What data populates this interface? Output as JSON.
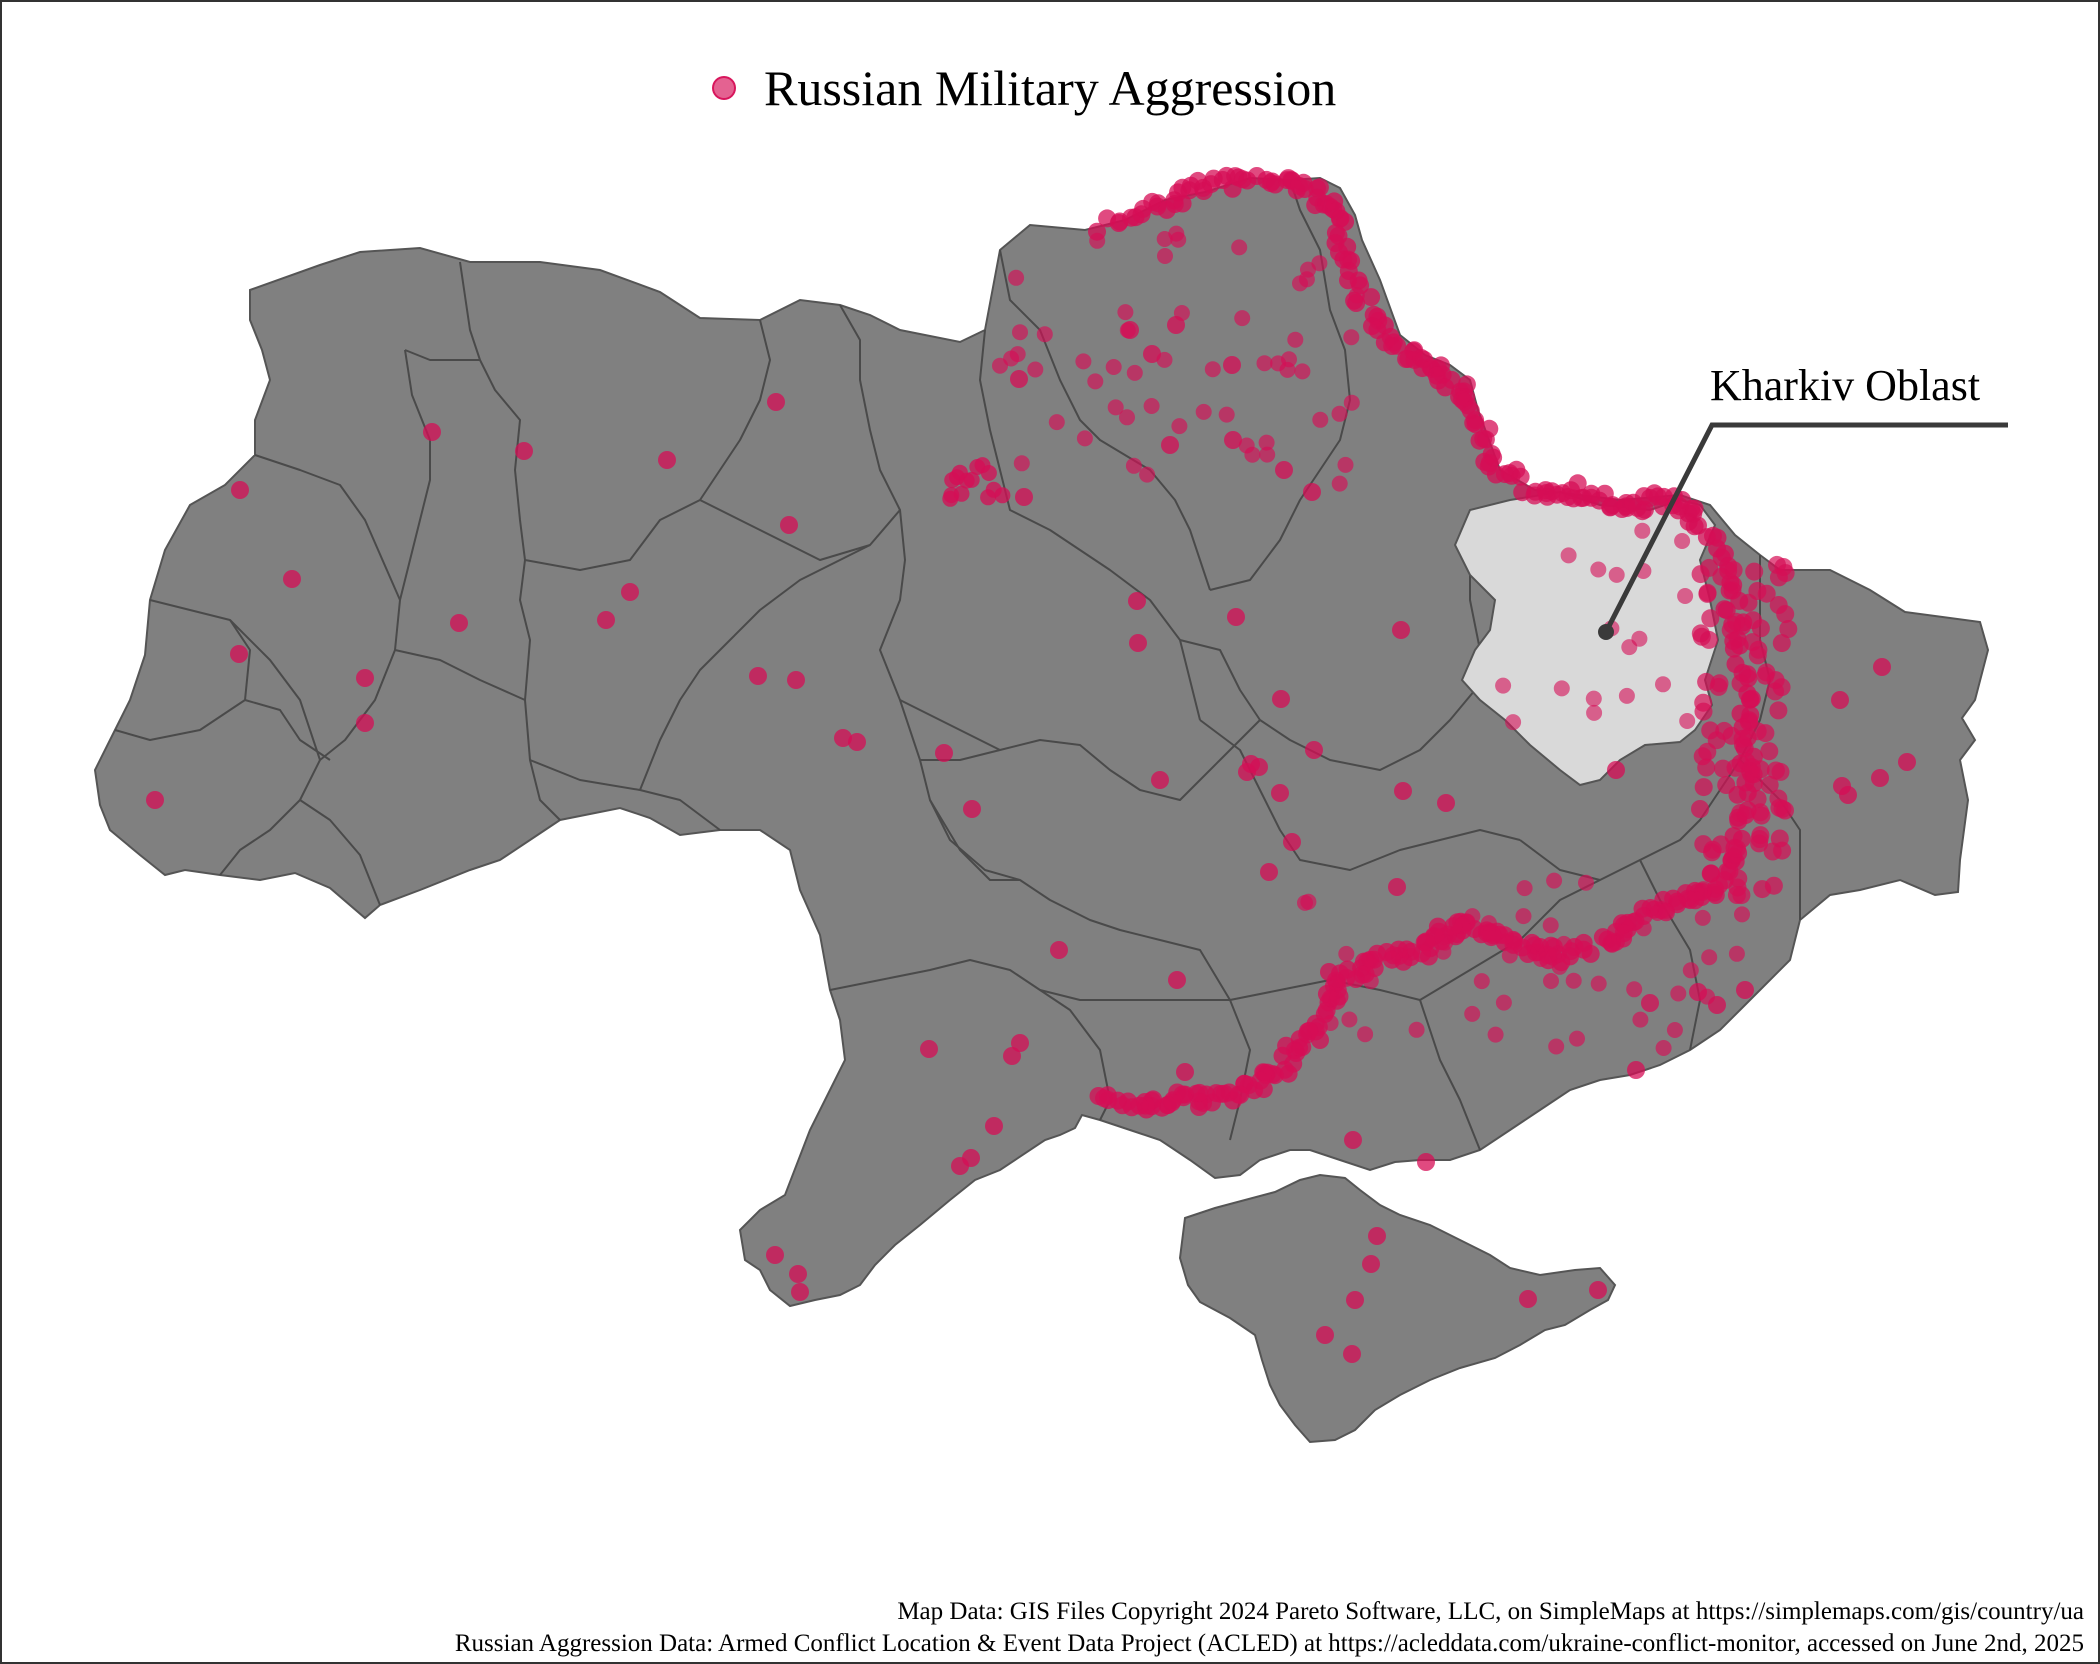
{
  "legend": {
    "label": "Russian Military Aggression"
  },
  "annotation": {
    "label": "Kharkiv Oblast"
  },
  "credits": {
    "map_data": "Map Data: GIS Files Copyright 2024 Pareto Software, LLC, on SimpleMaps at https://simplemaps.com/gis/country/ua",
    "aggression_data": "Russian Aggression Data: Armed Conflict Location & Event Data Project (ACLED) at https://acleddata.com/ukraine-conflict-monitor, accessed on June 2nd, 2025"
  },
  "colors": {
    "country_fill": "#808080",
    "country_border": "#555555",
    "highlight_fill": "#d9d9d9",
    "event_dot": "#d60e56",
    "leader_line": "#3a3a3a",
    "frame": "#333333"
  },
  "highlighted_region": "Kharkiv Oblast"
}
